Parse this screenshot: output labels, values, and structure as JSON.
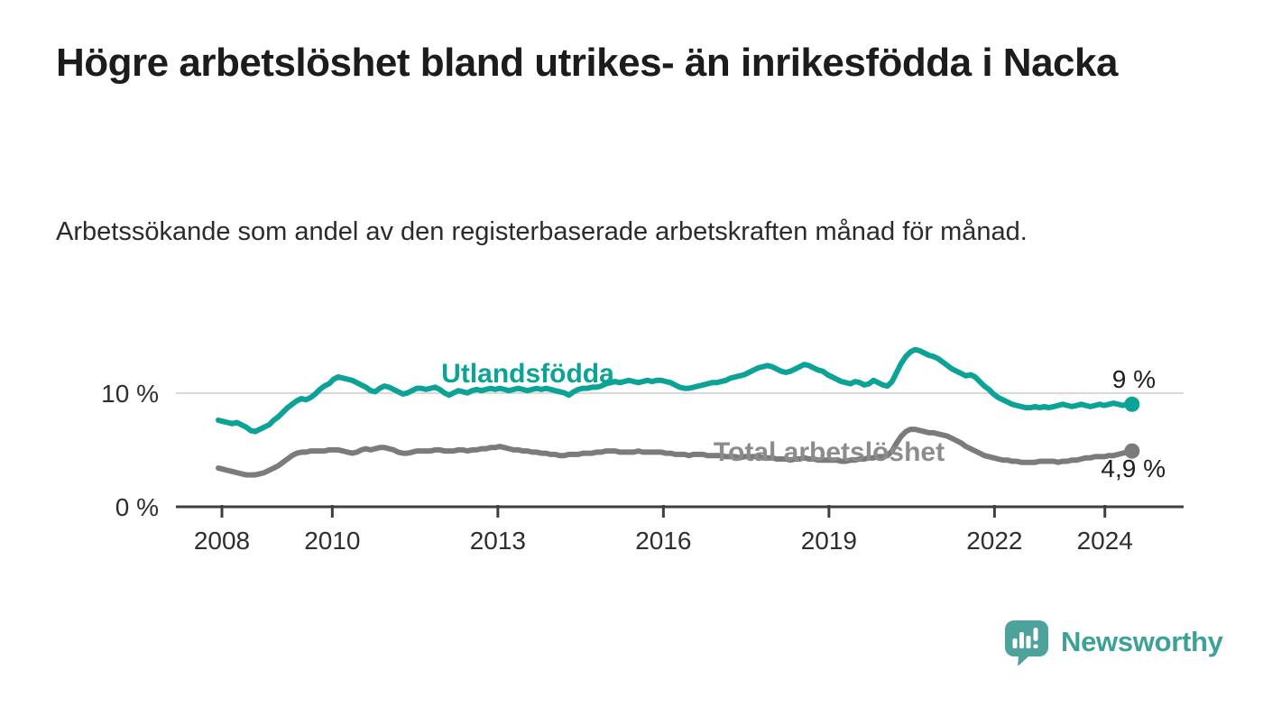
{
  "title": "Högre arbetslöshet bland utrikes- än inrikesfödda i Nacka",
  "subtitle": "Arbetssökande som andel av den registerbaserade arbetskraften månad för månad.",
  "branding": {
    "name": "Newsworthy",
    "logo_icon": "speech-bubble-bar-chart",
    "logo_color": "#4da39c",
    "wordmark_color": "#3da099"
  },
  "colors": {
    "background": "#ffffff",
    "title_text": "#1c1c1c",
    "gridline": "#d9d9d9",
    "axis": "#3f3f3f",
    "accent_teal": "#0aa396",
    "neutral_gray": "#7b7b7b"
  },
  "chart_data": {
    "type": "line",
    "title": "",
    "xlabel": "",
    "ylabel": "%",
    "x_interval": "monthly",
    "x_start": "2008-01",
    "x_end": "2024-07",
    "ylim": [
      0,
      14
    ],
    "grid": "single horizontal gridline at 10 %",
    "legend_position": "inline labels on lines",
    "y_tick_labels": [
      "10 %",
      "0 %"
    ],
    "y_tick_values": [
      10,
      0
    ],
    "x_tick_years": [
      2008,
      2010,
      2013,
      2016,
      2019,
      2022,
      2024
    ],
    "x_tick_labels": [
      "2008",
      "2010",
      "2013",
      "2016",
      "2019",
      "2022",
      "2024"
    ],
    "series": [
      {
        "name": "Utlandsfödda",
        "color": "#0aa396",
        "label_color": "#0aa396",
        "end_label": "9 %",
        "end_value": 9.0,
        "values": [
          7.6,
          7.5,
          7.4,
          7.3,
          7.4,
          7.2,
          7.0,
          6.7,
          6.6,
          6.8,
          7.0,
          7.2,
          7.6,
          7.9,
          8.3,
          8.7,
          9.0,
          9.3,
          9.5,
          9.4,
          9.6,
          9.9,
          10.3,
          10.6,
          10.8,
          11.2,
          11.4,
          11.3,
          11.2,
          11.1,
          10.9,
          10.7,
          10.5,
          10.2,
          10.1,
          10.4,
          10.6,
          10.5,
          10.3,
          10.1,
          9.9,
          10.0,
          10.2,
          10.4,
          10.4,
          10.3,
          10.4,
          10.5,
          10.3,
          10.0,
          9.8,
          10.0,
          10.2,
          10.1,
          10.0,
          10.2,
          10.3,
          10.2,
          10.3,
          10.4,
          10.3,
          10.4,
          10.3,
          10.2,
          10.3,
          10.4,
          10.3,
          10.2,
          10.3,
          10.4,
          10.3,
          10.4,
          10.3,
          10.2,
          10.1,
          10.0,
          9.8,
          10.1,
          10.3,
          10.4,
          10.4,
          10.5,
          10.5,
          10.6,
          10.8,
          10.9,
          11.0,
          10.9,
          11.0,
          11.1,
          11.0,
          10.9,
          11.0,
          11.1,
          11.0,
          11.1,
          11.1,
          11.0,
          10.9,
          10.7,
          10.5,
          10.4,
          10.4,
          10.5,
          10.6,
          10.7,
          10.8,
          10.9,
          10.9,
          11.0,
          11.1,
          11.3,
          11.4,
          11.5,
          11.6,
          11.8,
          12.0,
          12.2,
          12.3,
          12.4,
          12.3,
          12.1,
          11.9,
          11.8,
          11.9,
          12.1,
          12.3,
          12.5,
          12.4,
          12.2,
          12.0,
          11.9,
          11.6,
          11.4,
          11.2,
          11.0,
          10.9,
          10.8,
          11.0,
          10.9,
          10.7,
          10.8,
          11.1,
          10.9,
          10.7,
          10.6,
          11.0,
          11.8,
          12.6,
          13.2,
          13.6,
          13.8,
          13.7,
          13.5,
          13.3,
          13.2,
          13.0,
          12.7,
          12.4,
          12.1,
          11.9,
          11.7,
          11.5,
          11.6,
          11.4,
          11.0,
          10.6,
          10.3,
          9.9,
          9.6,
          9.4,
          9.2,
          9.0,
          8.9,
          8.8,
          8.7,
          8.7,
          8.8,
          8.7,
          8.8,
          8.7,
          8.8,
          8.9,
          9.0,
          8.9,
          8.8,
          8.9,
          9.0,
          8.9,
          8.8,
          8.9,
          9.0,
          8.9,
          9.0,
          9.1,
          9.0,
          8.9,
          9.0,
          9.0
        ]
      },
      {
        "name": "Total arbetslöshet",
        "color": "#7b7b7b",
        "label_color": "#8c8c8c",
        "end_label": "4,9 %",
        "end_value": 4.9,
        "values": [
          3.4,
          3.3,
          3.2,
          3.1,
          3.0,
          2.9,
          2.8,
          2.8,
          2.8,
          2.9,
          3.0,
          3.2,
          3.4,
          3.6,
          3.9,
          4.2,
          4.5,
          4.7,
          4.8,
          4.8,
          4.9,
          4.9,
          4.9,
          4.9,
          5.0,
          5.0,
          5.0,
          4.9,
          4.8,
          4.7,
          4.8,
          5.0,
          5.1,
          5.0,
          5.1,
          5.2,
          5.2,
          5.1,
          5.0,
          4.8,
          4.7,
          4.7,
          4.8,
          4.9,
          4.9,
          4.9,
          4.9,
          5.0,
          5.0,
          4.9,
          4.9,
          4.9,
          5.0,
          5.0,
          4.9,
          5.0,
          5.0,
          5.1,
          5.1,
          5.2,
          5.2,
          5.3,
          5.2,
          5.1,
          5.0,
          5.0,
          4.9,
          4.9,
          4.8,
          4.8,
          4.7,
          4.7,
          4.6,
          4.6,
          4.5,
          4.5,
          4.6,
          4.6,
          4.6,
          4.7,
          4.7,
          4.7,
          4.8,
          4.8,
          4.9,
          4.9,
          4.9,
          4.8,
          4.8,
          4.8,
          4.8,
          4.9,
          4.8,
          4.8,
          4.8,
          4.8,
          4.8,
          4.7,
          4.7,
          4.6,
          4.6,
          4.6,
          4.5,
          4.6,
          4.6,
          4.6,
          4.5,
          4.5,
          4.5,
          4.5,
          4.4,
          4.4,
          4.4,
          4.3,
          4.4,
          4.4,
          4.4,
          4.4,
          4.3,
          4.3,
          4.3,
          4.2,
          4.2,
          4.2,
          4.1,
          4.2,
          4.2,
          4.3,
          4.2,
          4.2,
          4.1,
          4.1,
          4.1,
          4.1,
          4.1,
          4.0,
          4.0,
          4.1,
          4.1,
          4.2,
          4.2,
          4.3,
          4.3,
          4.4,
          4.4,
          4.5,
          4.9,
          5.6,
          6.2,
          6.6,
          6.8,
          6.8,
          6.7,
          6.6,
          6.5,
          6.5,
          6.4,
          6.3,
          6.2,
          6.0,
          5.8,
          5.6,
          5.3,
          5.1,
          4.9,
          4.7,
          4.5,
          4.4,
          4.3,
          4.2,
          4.1,
          4.1,
          4.0,
          4.0,
          3.9,
          3.9,
          3.9,
          3.9,
          4.0,
          4.0,
          4.0,
          4.0,
          3.9,
          4.0,
          4.0,
          4.1,
          4.1,
          4.2,
          4.3,
          4.3,
          4.4,
          4.4,
          4.4,
          4.5,
          4.5,
          4.6,
          4.7,
          4.8,
          4.9
        ]
      }
    ]
  }
}
